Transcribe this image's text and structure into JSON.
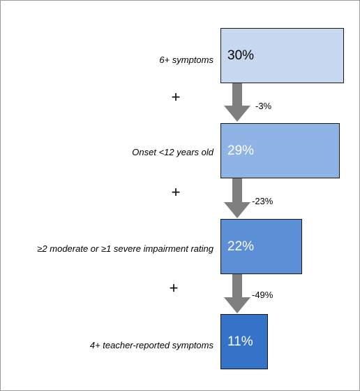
{
  "steps": [
    {
      "criterion": "6+ symptoms",
      "percent": "30%",
      "fill": "#c7d8f0",
      "text_color": "#000000"
    },
    {
      "criterion": "Onset <12 years old",
      "percent": "29%",
      "fill": "#8eb3e4",
      "text_color": "#ffffff"
    },
    {
      "criterion": "≥2 moderate or ≥1 severe impairment rating",
      "percent": "22%",
      "fill": "#5b8fd6",
      "text_color": "#ffffff"
    },
    {
      "criterion": "4+ teacher-reported symptoms",
      "percent": "11%",
      "fill": "#3473c8",
      "text_color": "#ffffff"
    }
  ],
  "connectors": [
    {
      "plus": "+",
      "change": "-3%"
    },
    {
      "plus": "+",
      "change": "-23%"
    },
    {
      "plus": "+",
      "change": "-49%"
    }
  ],
  "colors": {
    "arrow": "#7f7f7f",
    "border": "#1a1a1a"
  }
}
